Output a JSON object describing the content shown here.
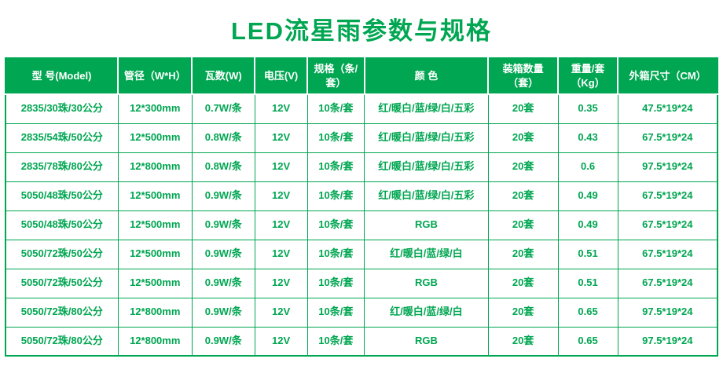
{
  "page": {
    "title": "LED流星雨参数与规格",
    "accent_color": "#00a651"
  },
  "table": {
    "headers": [
      "型  号(Model)",
      "管径（W*H）",
      "瓦数(W)",
      "电压(V)",
      "规格（条/套）",
      "颜      色",
      "装箱数量（套）",
      "重量/套（Kg）",
      "外箱尺寸（CM）"
    ],
    "rows": [
      [
        "2835/30珠/30公分",
        "12*300mm",
        "0.7W/条",
        "12V",
        "10条/套",
        "红/暖白/蓝/绿/白/五彩",
        "20套",
        "0.35",
        "47.5*19*24"
      ],
      [
        "2835/54珠/50公分",
        "12*500mm",
        "0.8W/条",
        "12V",
        "10条/套",
        "红/暖白/蓝/绿/白/五彩",
        "20套",
        "0.43",
        "67.5*19*24"
      ],
      [
        "2835/78珠/80公分",
        "12*800mm",
        "0.8W/条",
        "12V",
        "10条/套",
        "红/暖白/蓝/绿/白/五彩",
        "20套",
        "0.6",
        "97.5*19*24"
      ],
      [
        "5050/48珠/50公分",
        "12*500mm",
        "0.9W/条",
        "12V",
        "10条/套",
        "红/暖白/蓝/绿/白/五彩",
        "20套",
        "0.49",
        "67.5*19*24"
      ],
      [
        "5050/48珠/50公分",
        "12*500mm",
        "0.9W/条",
        "12V",
        "10条/套",
        "RGB",
        "20套",
        "0.49",
        "67.5*19*24"
      ],
      [
        "5050/72珠/50公分",
        "12*500mm",
        "0.9W/条",
        "12V",
        "10条/套",
        "红/暖白/蓝/绿/白",
        "20套",
        "0.51",
        "67.5*19*24"
      ],
      [
        "5050/72珠/50公分",
        "12*500mm",
        "0.9W/条",
        "12V",
        "10条/套",
        "RGB",
        "20套",
        "0.51",
        "67.5*19*24"
      ],
      [
        "5050/72珠/80公分",
        "12*800mm",
        "0.9W/条",
        "12V",
        "10条/套",
        "红/暖白/蓝/绿/白",
        "20套",
        "0.65",
        "97.5*19*24"
      ],
      [
        "5050/72珠/80公分",
        "12*800mm",
        "0.9W/条",
        "12V",
        "10条/套",
        "RGB",
        "20套",
        "0.65",
        "97.5*19*24"
      ]
    ]
  }
}
